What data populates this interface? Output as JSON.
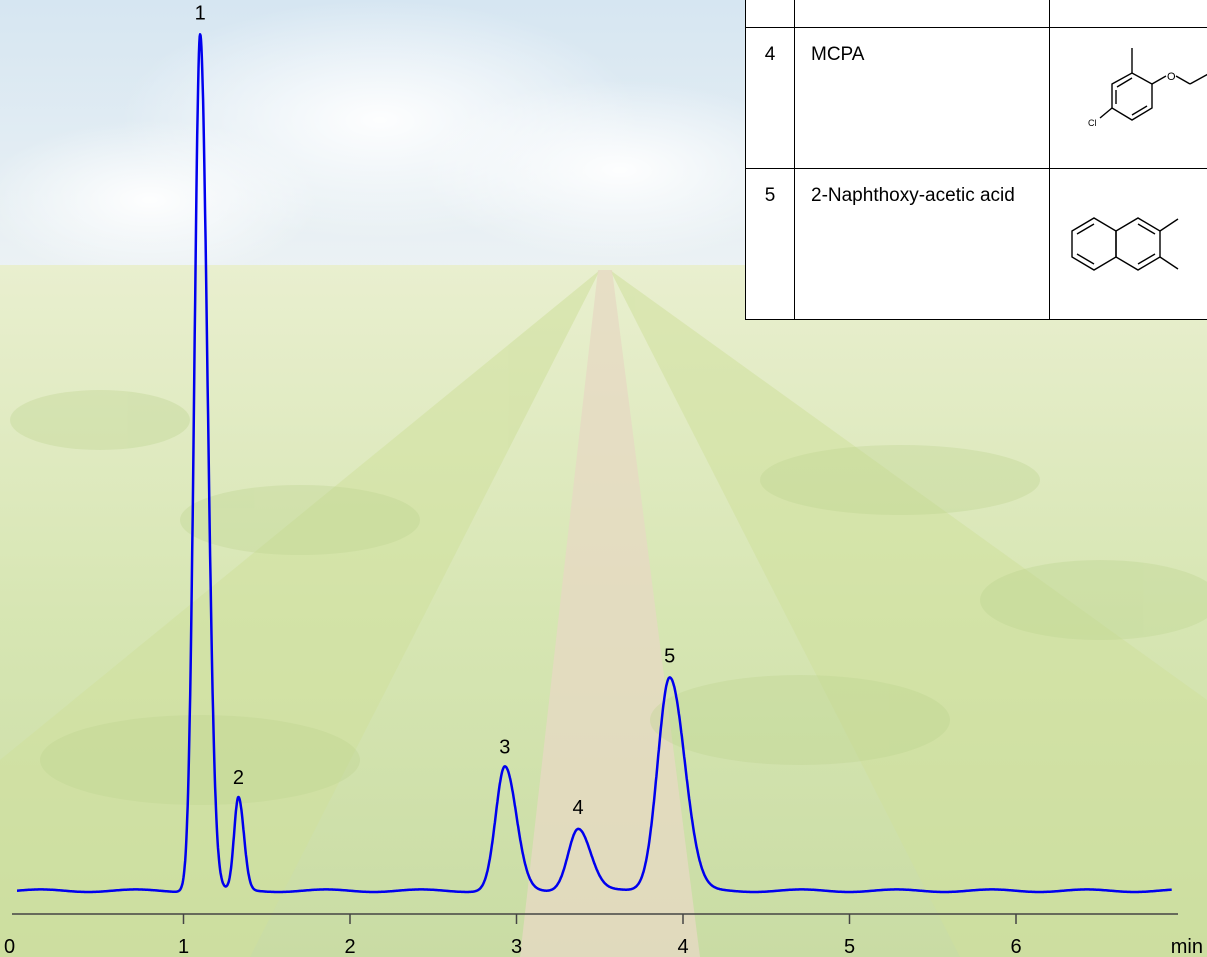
{
  "chart_data": {
    "type": "line",
    "xlabel": "min",
    "xlim": [
      0,
      7
    ],
    "ylim": [
      0,
      100
    ],
    "x_ticks": [
      "0",
      "1",
      "2",
      "3",
      "4",
      "5",
      "6"
    ],
    "grid": false,
    "series": [
      {
        "color": "#0000ee",
        "baseline": 1.2,
        "peaks": [
          {
            "label": "1",
            "x": 1.1,
            "height": 100,
            "width": 0.035
          },
          {
            "label": "2",
            "x": 1.33,
            "height": 10.8,
            "width": 0.026
          },
          {
            "label": "3",
            "x": 2.93,
            "height": 14.4,
            "width": 0.055
          },
          {
            "label": "4",
            "x": 3.37,
            "height": 7.3,
            "width": 0.06
          },
          {
            "label": "5",
            "x": 3.92,
            "height": 25.0,
            "width": 0.072
          }
        ]
      }
    ]
  },
  "table": {
    "rows": [
      {
        "num": "4",
        "name": "MCPA",
        "structure_icon": "mcpa-structure"
      },
      {
        "num": "5",
        "name": "2-Naphthoxy-acetic acid",
        "structure_icon": "naphthoxyacetic-acid-structure"
      }
    ]
  },
  "structure_atoms": {
    "oxygen": "O",
    "chlorine": "Cl"
  }
}
